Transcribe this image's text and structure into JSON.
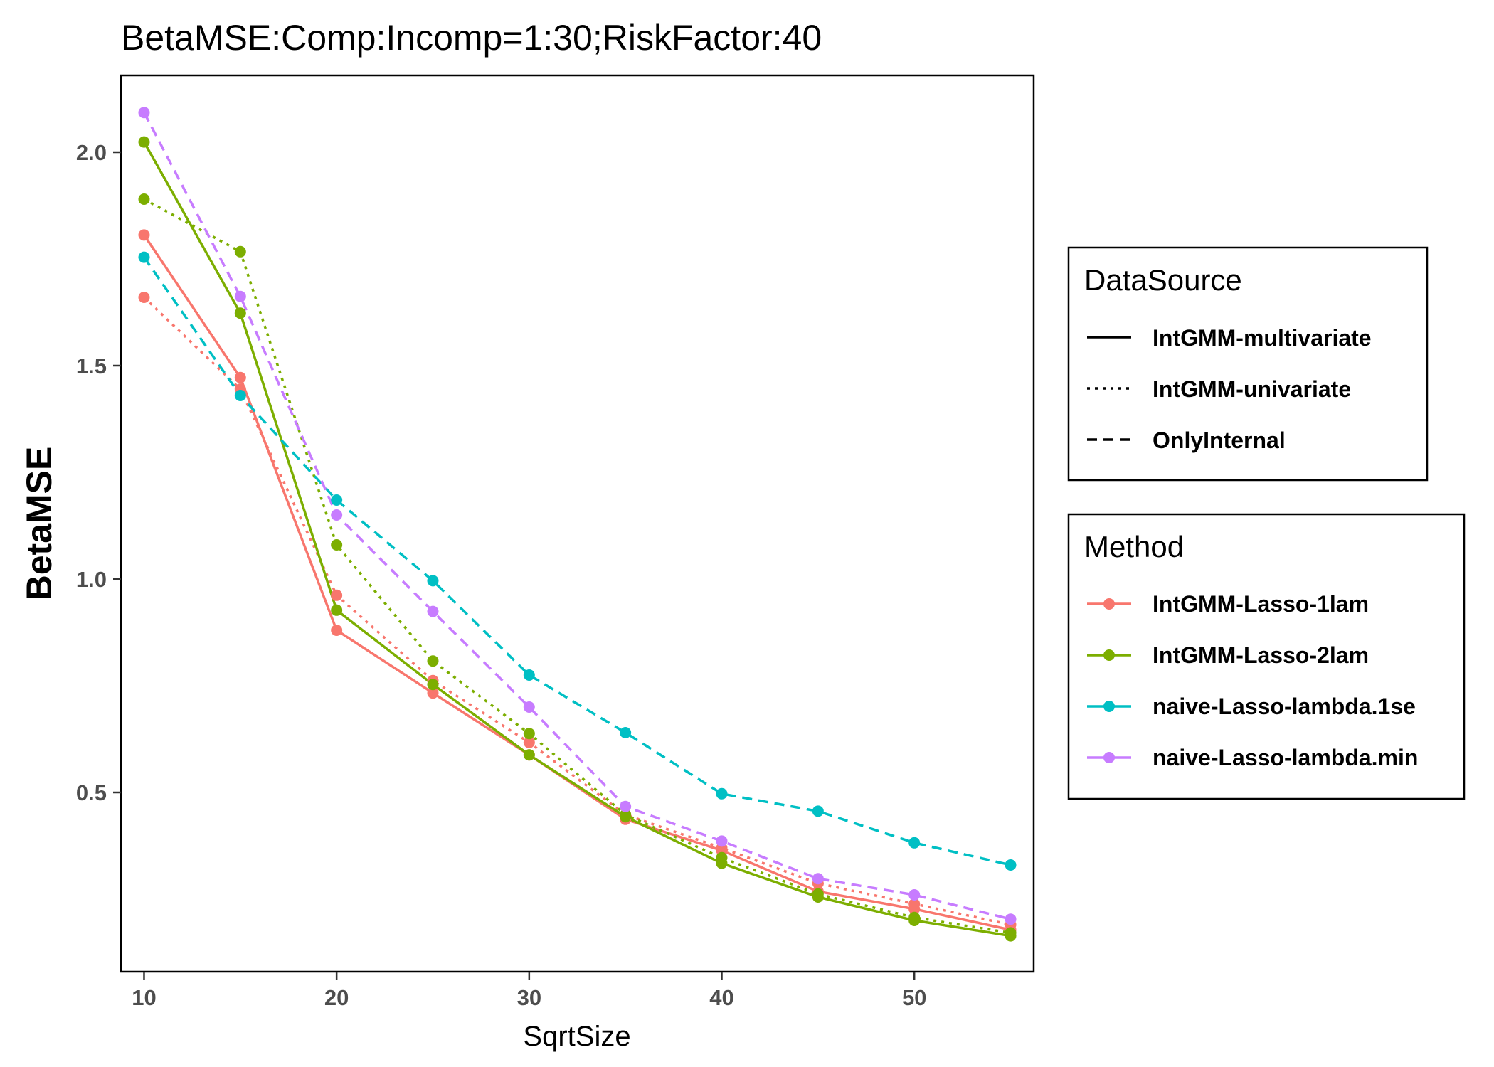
{
  "chart_data": {
    "type": "line",
    "title": "BetaMSE:Comp:Incomp=1:30;RiskFactor:40",
    "xlabel": "SqrtSize",
    "ylabel": "BetaMSE",
    "x": [
      10,
      15,
      20,
      25,
      30,
      35,
      40,
      45,
      50,
      55
    ],
    "xlim": [
      8.8,
      56.2
    ],
    "ylim": [
      0.08,
      2.18
    ],
    "x_ticks": [
      10,
      20,
      30,
      40,
      50
    ],
    "y_ticks": [
      0.5,
      1.0,
      1.5,
      2.0
    ],
    "y_tick_labels": [
      "0.5",
      "1.0",
      "1.5",
      "2.0"
    ],
    "grid": false,
    "legends": [
      {
        "title": "DataSource",
        "entries": [
          {
            "label": "IntGMM-multivariate",
            "linetype": "solid"
          },
          {
            "label": "IntGMM-univariate",
            "linetype": "dotted"
          },
          {
            "label": "OnlyInternal",
            "linetype": "dashed"
          }
        ]
      },
      {
        "title": "Method",
        "entries": [
          {
            "label": "IntGMM-Lasso-1lam",
            "color": "#F8766D"
          },
          {
            "label": "IntGMM-Lasso-2lam",
            "color": "#7CAE00"
          },
          {
            "label": "naive-Lasso-lambda.1se",
            "color": "#00BFC4"
          },
          {
            "label": "naive-Lasso-lambda.min",
            "color": "#C77CFF"
          }
        ]
      }
    ],
    "legend_placement": "right",
    "series": [
      {
        "method": "IntGMM-Lasso-1lam",
        "source": "IntGMM-multivariate",
        "color": "#F8766D",
        "linetype": "solid",
        "values": [
          1.806,
          1.472,
          0.88,
          0.733,
          0.588,
          0.437,
          0.364,
          0.268,
          0.227,
          0.178
        ]
      },
      {
        "method": "IntGMM-Lasso-1lam",
        "source": "IntGMM-univariate",
        "color": "#F8766D",
        "linetype": "dotted",
        "values": [
          1.66,
          1.445,
          0.962,
          0.762,
          0.617,
          0.448,
          0.37,
          0.287,
          0.239,
          0.19
        ]
      },
      {
        "method": "IntGMM-Lasso-2lam",
        "source": "IntGMM-multivariate",
        "color": "#7CAE00",
        "linetype": "solid",
        "values": [
          2.024,
          1.623,
          0.927,
          0.753,
          0.588,
          0.443,
          0.334,
          0.255,
          0.2,
          0.164
        ]
      },
      {
        "method": "IntGMM-Lasso-2lam",
        "source": "IntGMM-univariate",
        "color": "#7CAE00",
        "linetype": "dotted",
        "values": [
          1.89,
          1.767,
          1.08,
          0.808,
          0.638,
          0.448,
          0.347,
          0.262,
          0.207,
          0.171
        ]
      },
      {
        "method": "naive-Lasso-lambda.1se",
        "source": "OnlyInternal",
        "color": "#00BFC4",
        "linetype": "dashed",
        "values": [
          1.754,
          1.43,
          1.185,
          0.996,
          0.775,
          0.64,
          0.497,
          0.456,
          0.382,
          0.33
        ]
      },
      {
        "method": "naive-Lasso-lambda.min",
        "source": "OnlyInternal",
        "color": "#C77CFF",
        "linetype": "dashed",
        "values": [
          2.093,
          1.662,
          1.15,
          0.924,
          0.7,
          0.467,
          0.386,
          0.298,
          0.26,
          0.203
        ]
      }
    ]
  }
}
